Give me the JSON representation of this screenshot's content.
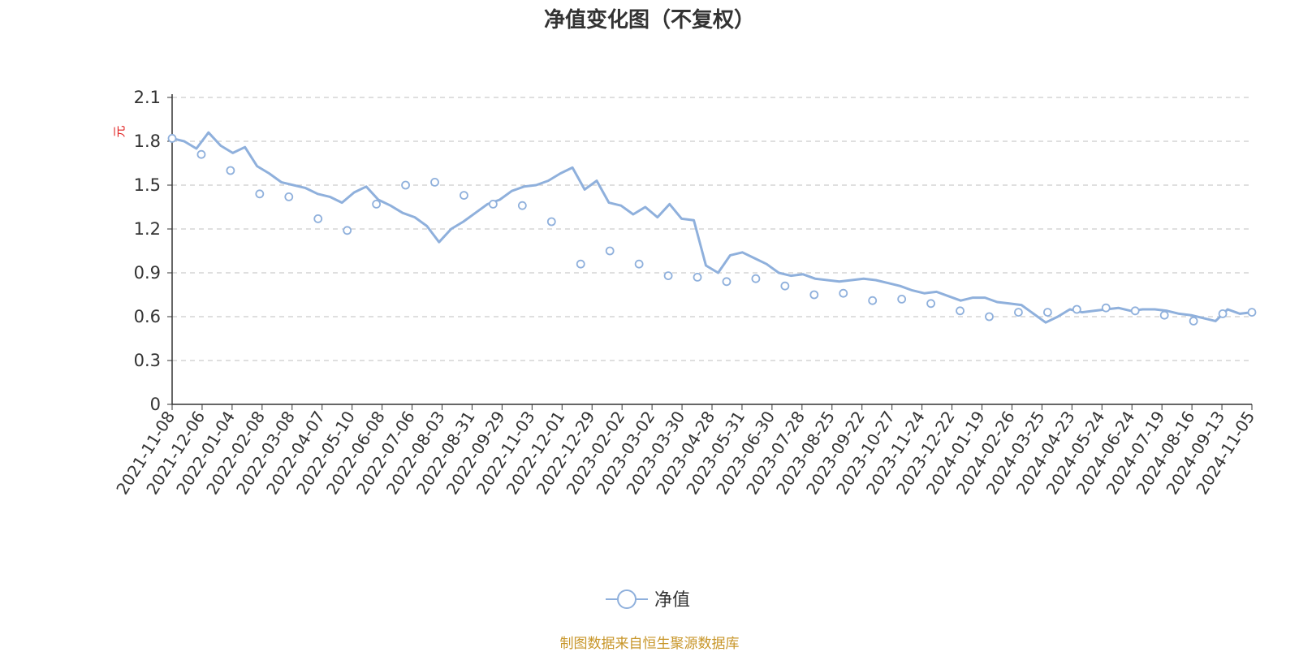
{
  "chart_data": {
    "type": "line",
    "title": "净值变化图（不复权）",
    "ylabel": "元",
    "ylim": [
      0,
      2.1
    ],
    "yticks": [
      "0",
      "0.3",
      "0.6",
      "0.9",
      "1.2",
      "1.5",
      "1.8",
      "2.1"
    ],
    "grid": "horizontal dashed",
    "legend_position": "bottom-center",
    "x_ticks": [
      "2021-11-08",
      "2021-12-06",
      "2022-01-04",
      "2022-02-08",
      "2022-03-08",
      "2022-04-07",
      "2022-05-10",
      "2022-06-08",
      "2022-07-06",
      "2022-08-03",
      "2022-08-31",
      "2022-09-29",
      "2022-11-03",
      "2022-12-01",
      "2022-12-29",
      "2023-02-02",
      "2023-03-02",
      "2023-03-30",
      "2023-04-28",
      "2023-05-31",
      "2023-06-30",
      "2023-07-28",
      "2023-08-25",
      "2023-09-22",
      "2023-10-27",
      "2023-11-24",
      "2023-12-22",
      "2024-01-19",
      "2024-02-26",
      "2024-03-25",
      "2024-04-23",
      "2024-05-24",
      "2024-06-24",
      "2024-07-19",
      "2024-08-16",
      "2024-09-13",
      "2024-11-05"
    ],
    "series": [
      {
        "name": "净值",
        "color": "#8fb0dc",
        "values": [
          1.82,
          1.8,
          1.75,
          1.86,
          1.77,
          1.72,
          1.76,
          1.63,
          1.58,
          1.52,
          1.5,
          1.48,
          1.44,
          1.42,
          1.38,
          1.45,
          1.49,
          1.4,
          1.36,
          1.31,
          1.28,
          1.22,
          1.11,
          1.2,
          1.25,
          1.31,
          1.37,
          1.4,
          1.46,
          1.49,
          1.5,
          1.53,
          1.58,
          1.62,
          1.47,
          1.53,
          1.38,
          1.36,
          1.3,
          1.35,
          1.28,
          1.37,
          1.27,
          1.26,
          0.95,
          0.9,
          1.02,
          1.04,
          1.0,
          0.96,
          0.9,
          0.88,
          0.89,
          0.86,
          0.85,
          0.84,
          0.85,
          0.86,
          0.85,
          0.83,
          0.81,
          0.78,
          0.76,
          0.77,
          0.74,
          0.71,
          0.73,
          0.73,
          0.7,
          0.69,
          0.68,
          0.62,
          0.56,
          0.6,
          0.65,
          0.63,
          0.64,
          0.65,
          0.66,
          0.64,
          0.65,
          0.65,
          0.64,
          0.62,
          0.61,
          0.59,
          0.57,
          0.65,
          0.62,
          0.63
        ],
        "marker_values": [
          1.82,
          1.71,
          1.6,
          1.44,
          1.42,
          1.27,
          1.19,
          1.37,
          1.5,
          1.52,
          1.43,
          1.37,
          1.36,
          1.25,
          0.96,
          1.05,
          0.96,
          0.88,
          0.87,
          0.84,
          0.86,
          0.81,
          0.75,
          0.76,
          0.71,
          0.72,
          0.69,
          0.64,
          0.6,
          0.63,
          0.63,
          0.65,
          0.66,
          0.64,
          0.61,
          0.57,
          0.62,
          0.63
        ]
      }
    ],
    "legend": [
      "净值"
    ]
  },
  "footer": {
    "source": "制图数据来自恒生聚源数据库"
  }
}
